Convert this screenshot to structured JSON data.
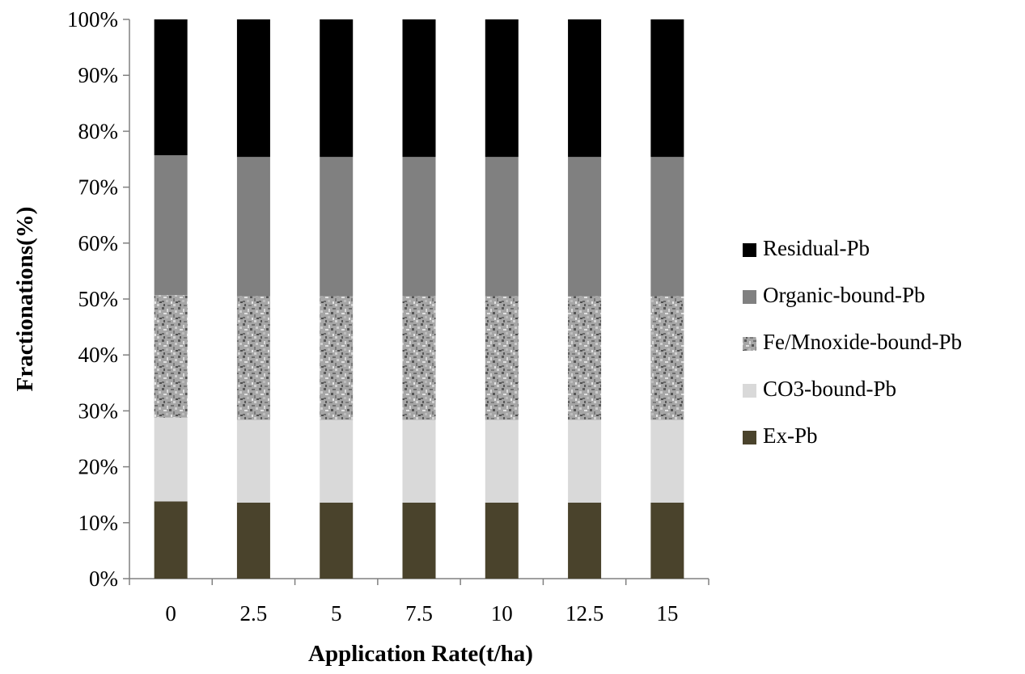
{
  "chart_data": {
    "type": "bar",
    "stacked": true,
    "normalized_percent": true,
    "title": "",
    "xlabel": "Application Rate(t/ha)",
    "ylabel": "Fractionations(%)",
    "ylim": [
      0,
      100
    ],
    "yticks": [
      "0%",
      "10%",
      "20%",
      "30%",
      "40%",
      "50%",
      "60%",
      "70%",
      "80%",
      "90%",
      "100%"
    ],
    "categories": [
      "0",
      "2.5",
      "5",
      "7.5",
      "10",
      "12.5",
      "15"
    ],
    "legend_position": "right",
    "grid": false,
    "series": [
      {
        "name": "Ex-Pb",
        "color": "#4a432c",
        "pattern": "solid",
        "values": [
          13.8,
          13.6,
          13.6,
          13.6,
          13.6,
          13.6,
          13.6
        ]
      },
      {
        "name": "CO3-bound-Pb",
        "color": "#d9d9d9",
        "pattern": "solid",
        "values": [
          15.0,
          14.8,
          14.8,
          14.8,
          14.8,
          14.8,
          14.8
        ]
      },
      {
        "name": "Fe/Mnoxide-bound-Pb",
        "color": "#9a9a9a",
        "pattern": "granite-texture",
        "values": [
          21.9,
          22.1,
          22.1,
          22.1,
          22.1,
          22.1,
          22.1
        ]
      },
      {
        "name": "Organic-bound-Pb",
        "color": "#808080",
        "pattern": "solid",
        "values": [
          25.0,
          24.9,
          24.9,
          24.9,
          24.9,
          24.9,
          24.9
        ]
      },
      {
        "name": "Residual-Pb",
        "color": "#000000",
        "pattern": "solid",
        "values": [
          24.3,
          24.6,
          24.6,
          24.6,
          24.6,
          24.6,
          24.6
        ]
      }
    ]
  }
}
